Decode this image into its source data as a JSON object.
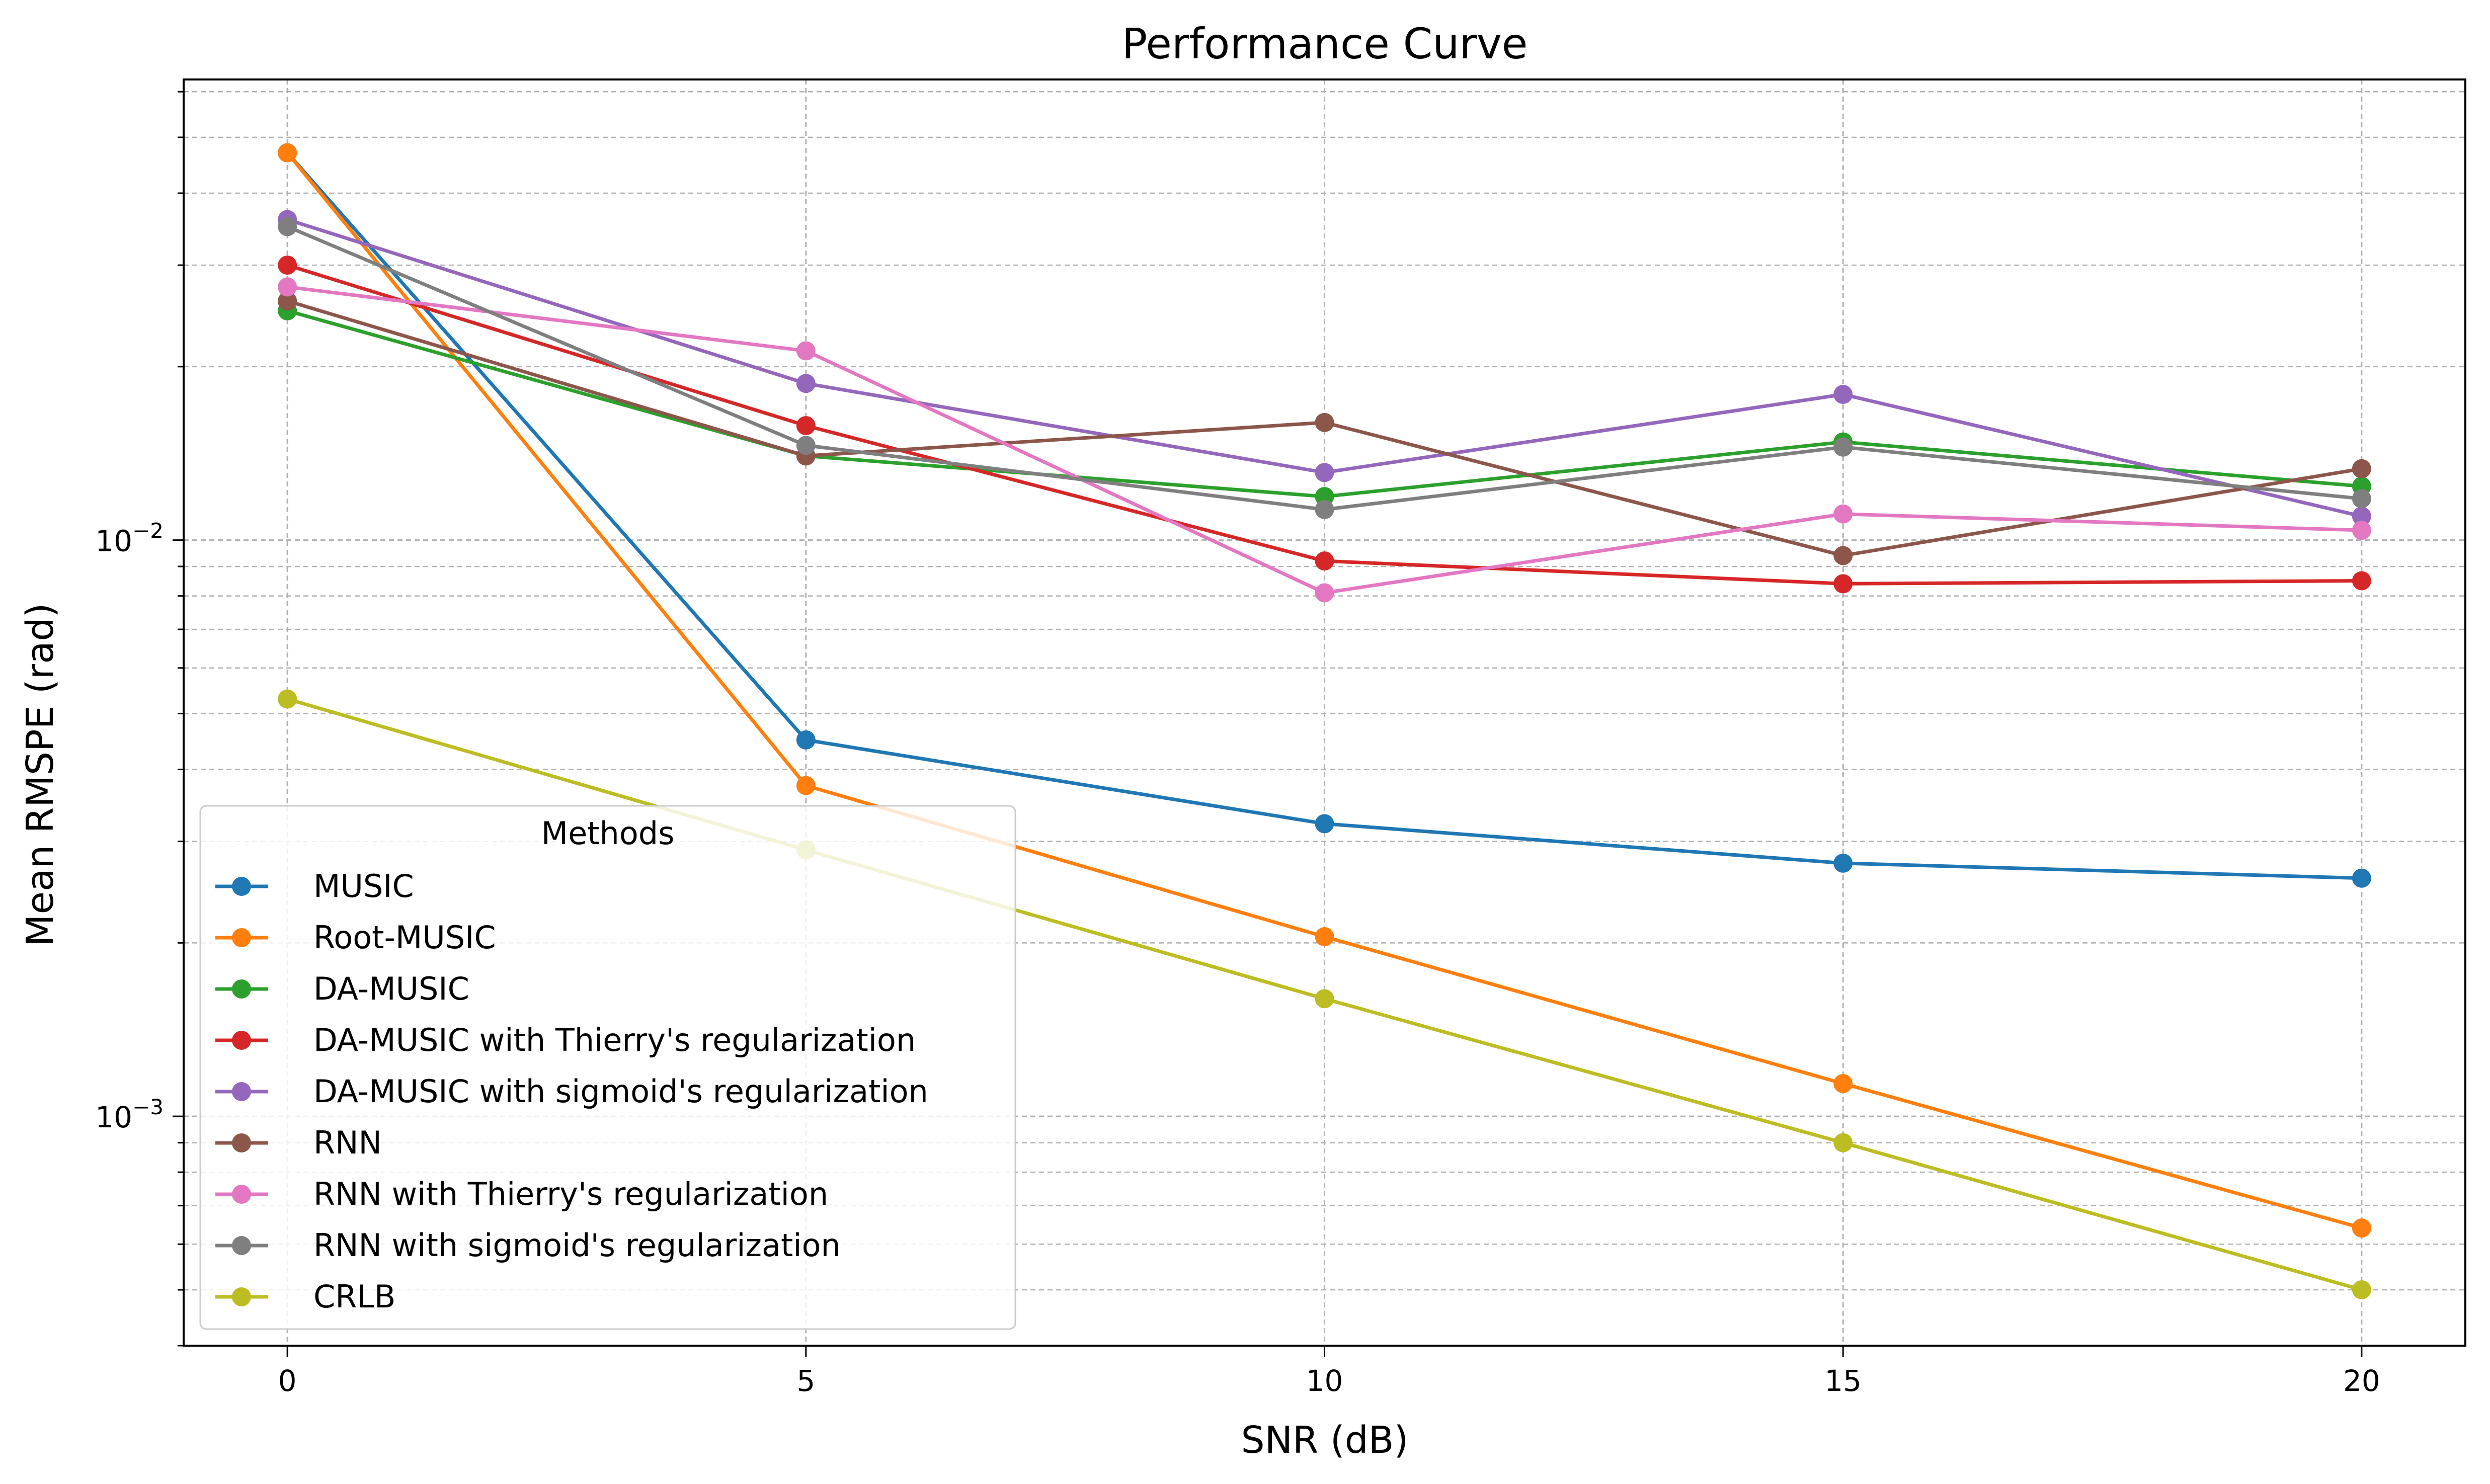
{
  "chart_data": {
    "type": "line",
    "title": "Performance Curve",
    "xlabel": "SNR (dB)",
    "ylabel": "Mean RMSPE (rad)",
    "yscale": "log",
    "x": [
      0,
      5,
      10,
      15,
      20
    ],
    "xticks": [
      "0",
      "5",
      "10",
      "15",
      "20"
    ],
    "xlim": [
      -1,
      21
    ],
    "ylim": [
      0.0004,
      0.063
    ],
    "yticks": [
      {
        "value": 0.01,
        "base": "10",
        "exp": "−2"
      },
      {
        "value": 0.001,
        "base": "10",
        "exp": "−3"
      }
    ],
    "grid": true,
    "legend": {
      "title": "Methods",
      "placement": "lower-left"
    },
    "series": [
      {
        "name": "MUSIC",
        "color": "#1f77b4",
        "values": [
          0.047,
          0.0045,
          0.00322,
          0.00275,
          0.00259
        ]
      },
      {
        "name": "Root-MUSIC",
        "color": "#ff7f0e",
        "values": [
          0.047,
          0.00375,
          0.00205,
          0.00114,
          0.00064
        ]
      },
      {
        "name": "DA-MUSIC",
        "color": "#2ca02c",
        "values": [
          0.025,
          0.014,
          0.0119,
          0.0148,
          0.0124
        ]
      },
      {
        "name": "DA-MUSIC with Thierry's regularization",
        "color": "#d62728",
        "values": [
          0.03,
          0.0158,
          0.0092,
          0.0084,
          0.0085
        ]
      },
      {
        "name": "DA-MUSIC with sigmoid's regularization",
        "color": "#9467bd",
        "values": [
          0.036,
          0.0187,
          0.0131,
          0.0179,
          0.011
        ]
      },
      {
        "name": "RNN",
        "color": "#8c564b",
        "values": [
          0.026,
          0.014,
          0.016,
          0.0094,
          0.0133
        ]
      },
      {
        "name": "RNN with Thierry's regularization",
        "color": "#e377c2",
        "values": [
          0.0275,
          0.0213,
          0.0081,
          0.0111,
          0.0104
        ]
      },
      {
        "name": "RNN with sigmoid's regularization",
        "color": "#7f7f7f",
        "values": [
          0.035,
          0.0146,
          0.0113,
          0.0145,
          0.0118
        ]
      },
      {
        "name": "CRLB",
        "color": "#bcbd22",
        "values": [
          0.0053,
          0.0029,
          0.0016,
          0.0009,
          0.0005
        ]
      }
    ]
  }
}
